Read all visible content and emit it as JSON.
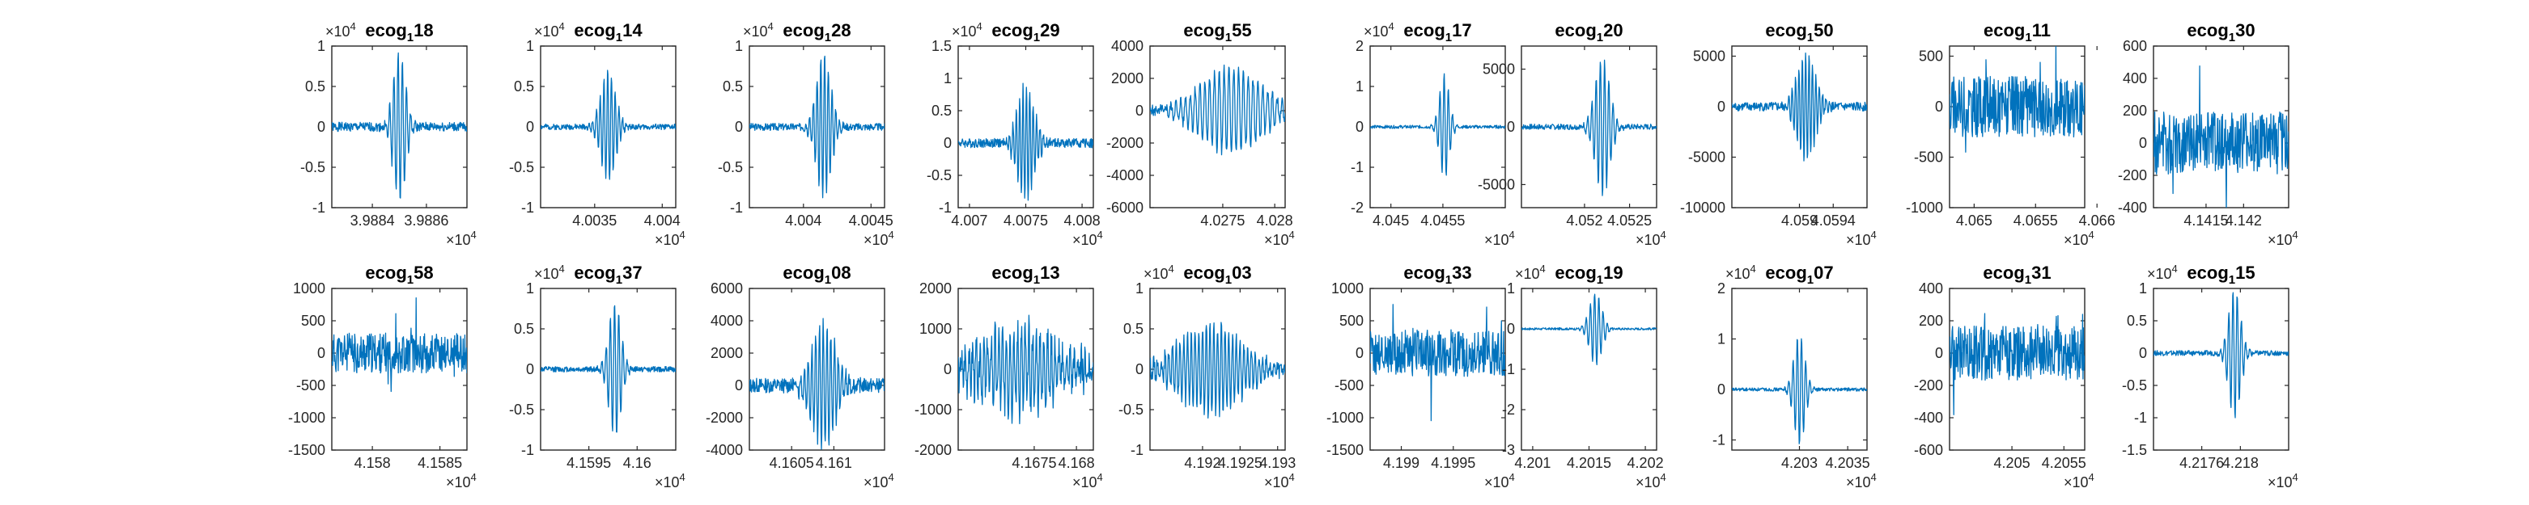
{
  "chart_data": [
    {
      "type": "line",
      "title": {
        "base": "ecog",
        "sub": "1",
        "rest": "18"
      },
      "x_ticks": [
        "3.9884",
        "3.9886"
      ],
      "x_multiplier": {
        "base": "×10",
        "exp": "4"
      },
      "y_ticks": [
        "-1",
        "-0.5",
        "0",
        "0.5",
        "1"
      ],
      "y_multiplier": {
        "base": "×10",
        "exp": "4"
      },
      "xlim": [
        39882.5,
        39887.5
      ],
      "ylim": [
        -10000,
        10000
      ],
      "signal": {
        "kind": "burst",
        "amp": 9500,
        "center": 0.5,
        "width": 0.1,
        "freq": 8,
        "noise": 0.06,
        "seed": 1
      }
    },
    {
      "type": "line",
      "title": {
        "base": "ecog",
        "sub": "1",
        "rest": "14"
      },
      "x_ticks": [
        "4.0035",
        "4.004"
      ],
      "x_multiplier": {
        "base": "×10",
        "exp": "4"
      },
      "y_ticks": [
        "-1",
        "-0.5",
        "0",
        "0.5",
        "1"
      ],
      "y_multiplier": {
        "base": "×10",
        "exp": "4"
      },
      "xlim": [
        40031,
        40041
      ],
      "ylim": [
        -10000,
        10000
      ],
      "signal": {
        "kind": "burst",
        "amp": 7000,
        "center": 0.5,
        "width": 0.12,
        "freq": 9,
        "noise": 0.05,
        "seed": 2
      }
    },
    {
      "type": "line",
      "title": {
        "base": "ecog",
        "sub": "1",
        "rest": "28"
      },
      "x_ticks": [
        "4.004",
        "4.0045"
      ],
      "x_multiplier": {
        "base": "×10",
        "exp": "4"
      },
      "y_ticks": [
        "-1",
        "-0.5",
        "0",
        "0.5",
        "1"
      ],
      "y_multiplier": {
        "base": "×10",
        "exp": "4"
      },
      "xlim": [
        40036,
        40046
      ],
      "ylim": [
        -10000,
        10000
      ],
      "signal": {
        "kind": "burst",
        "amp": 9000,
        "center": 0.55,
        "width": 0.12,
        "freq": 9,
        "noise": 0.05,
        "seed": 3
      }
    },
    {
      "type": "line",
      "title": {
        "base": "ecog",
        "sub": "1",
        "rest": "29"
      },
      "x_ticks": [
        "4.007",
        "4.0075",
        "4.008"
      ],
      "x_multiplier": {
        "base": "×10",
        "exp": "4"
      },
      "y_ticks": [
        "-1",
        "-0.5",
        "0",
        "0.5",
        "1",
        "1.5"
      ],
      "y_multiplier": {
        "base": "×10",
        "exp": "4"
      },
      "xlim": [
        40069,
        40081
      ],
      "ylim": [
        -10000,
        15000
      ],
      "signal": {
        "kind": "burst",
        "amp": 9000,
        "center": 0.5,
        "width": 0.14,
        "freq": 10,
        "noise": 0.08,
        "seed": 4
      }
    },
    {
      "type": "line",
      "title": {
        "base": "ecog",
        "sub": "1",
        "rest": "55"
      },
      "x_ticks": [
        "4.0275",
        "4.028"
      ],
      "x_multiplier": {
        "base": "×10",
        "exp": "4"
      },
      "y_ticks": [
        "-6000",
        "-4000",
        "-2000",
        "0",
        "2000",
        "4000"
      ],
      "y_multiplier": null,
      "xlim": [
        40268,
        40281
      ],
      "ylim": [
        -6000,
        4000
      ],
      "signal": {
        "kind": "wave",
        "amp": 2600,
        "center": 0.6,
        "width": 0.35,
        "freq": 7,
        "noise": 0.12,
        "seed": 5
      }
    },
    {
      "type": "line",
      "title": {
        "base": "ecog",
        "sub": "1",
        "rest": "17"
      },
      "x_ticks": [
        "4.045",
        "4.0455"
      ],
      "x_multiplier": {
        "base": "×10",
        "exp": "4"
      },
      "y_ticks": [
        "-2",
        "-1",
        "0",
        "1",
        "2"
      ],
      "y_multiplier": {
        "base": "×10",
        "exp": "4"
      },
      "xlim": [
        40448,
        40461
      ],
      "ylim": [
        -20000,
        20000
      ],
      "signal": {
        "kind": "burst",
        "amp": 13000,
        "center": 0.55,
        "width": 0.08,
        "freq": 8,
        "noise": 0.03,
        "seed": 6
      }
    },
    {
      "type": "line",
      "title": {
        "base": "ecog",
        "sub": "1",
        "rest": "20"
      },
      "x_ticks": [
        "4.052",
        "4.0525"
      ],
      "x_multiplier": {
        "base": "×10",
        "exp": "4"
      },
      "y_ticks": [
        "-5000",
        "0",
        "5000"
      ],
      "y_multiplier": null,
      "xlim": [
        40513,
        40528
      ],
      "ylim": [
        -7000,
        7000
      ],
      "signal": {
        "kind": "burst",
        "amp": 6000,
        "center": 0.6,
        "width": 0.12,
        "freq": 8,
        "noise": 0.04,
        "seed": 7
      }
    },
    {
      "type": "line",
      "title": {
        "base": "ecog",
        "sub": "1",
        "rest": "50"
      },
      "x_ticks": [
        "4.059",
        "4.0594"
      ],
      "x_multiplier": {
        "base": "×10",
        "exp": "4"
      },
      "y_ticks": [
        "-10000",
        "-5000",
        "0",
        "5000"
      ],
      "y_multiplier": null,
      "xlim": [
        40582,
        40598
      ],
      "ylim": [
        -10000,
        6000
      ],
      "signal": {
        "kind": "burst",
        "amp": 5500,
        "center": 0.55,
        "width": 0.15,
        "freq": 10,
        "noise": 0.08,
        "seed": 8
      }
    },
    {
      "type": "line",
      "title": {
        "base": "ecog",
        "sub": "1",
        "rest": "11"
      },
      "x_ticks": [
        "4.065",
        "4.0655",
        "4.066"
      ],
      "x_multiplier": {
        "base": "×10",
        "exp": "4"
      },
      "y_ticks": [
        "-1000",
        "-500",
        "0",
        "500"
      ],
      "y_multiplier": null,
      "xlim": [
        40648,
        40659
      ],
      "ylim": [
        -1000,
        600
      ],
      "signal": {
        "kind": "noise",
        "amp": 250,
        "center": 0.5,
        "width": 0.5,
        "freq": 40,
        "noise": 1,
        "seed": 9
      }
    },
    {
      "type": "line",
      "title": {
        "base": "ecog",
        "sub": "1",
        "rest": "30"
      },
      "x_ticks": [
        "4.1415",
        "4.142"
      ],
      "x_multiplier": {
        "base": "×10",
        "exp": "4"
      },
      "y_ticks": [
        "-400",
        "-200",
        "0",
        "200",
        "400",
        "600"
      ],
      "y_multiplier": null,
      "xlim": [
        41408,
        41426
      ],
      "ylim": [
        -400,
        600
      ],
      "signal": {
        "kind": "noise",
        "amp": 160,
        "center": 0.5,
        "width": 0.5,
        "freq": 40,
        "noise": 1,
        "seed": 10
      }
    },
    {
      "type": "line",
      "title": {
        "base": "ecog",
        "sub": "1",
        "rest": "58"
      },
      "x_ticks": [
        "4.158",
        "4.1585"
      ],
      "x_multiplier": {
        "base": "×10",
        "exp": "4"
      },
      "y_ticks": [
        "-1500",
        "-1000",
        "-500",
        "0",
        "500",
        "1000"
      ],
      "y_multiplier": null,
      "xlim": [
        41577,
        41587
      ],
      "ylim": [
        -1500,
        1000
      ],
      "signal": {
        "kind": "noise",
        "amp": 260,
        "center": 0.5,
        "width": 0.5,
        "freq": 40,
        "noise": 1,
        "seed": 11
      }
    },
    {
      "type": "line",
      "title": {
        "base": "ecog",
        "sub": "1",
        "rest": "37"
      },
      "x_ticks": [
        "4.1595",
        "4.16"
      ],
      "x_multiplier": {
        "base": "×10",
        "exp": "4"
      },
      "y_ticks": [
        "-1",
        "-0.5",
        "0",
        "0.5",
        "1"
      ],
      "y_multiplier": {
        "base": "×10",
        "exp": "4"
      },
      "xlim": [
        41590,
        41604
      ],
      "ylim": [
        -10000,
        10000
      ],
      "signal": {
        "kind": "burst",
        "amp": 8500,
        "center": 0.55,
        "width": 0.1,
        "freq": 8,
        "noise": 0.04,
        "seed": 12
      }
    },
    {
      "type": "line",
      "title": {
        "base": "ecog",
        "sub": "1",
        "rest": "08"
      },
      "x_ticks": [
        "4.1605",
        "4.161"
      ],
      "x_multiplier": {
        "base": "×10",
        "exp": "4"
      },
      "y_ticks": [
        "-4000",
        "-2000",
        "0",
        "2000",
        "4000",
        "6000"
      ],
      "y_multiplier": null,
      "xlim": [
        41600,
        41616
      ],
      "ylim": [
        -4000,
        6000
      ],
      "signal": {
        "kind": "burst",
        "amp": 3800,
        "center": 0.55,
        "width": 0.2,
        "freq": 9,
        "noise": 0.12,
        "seed": 13
      }
    },
    {
      "type": "line",
      "title": {
        "base": "ecog",
        "sub": "1",
        "rest": "13"
      },
      "x_ticks": [
        "4.1675",
        "4.168"
      ],
      "x_multiplier": {
        "base": "×10",
        "exp": "4"
      },
      "y_ticks": [
        "-2000",
        "-1000",
        "0",
        "1000",
        "2000"
      ],
      "y_multiplier": null,
      "xlim": [
        41666,
        41682
      ],
      "ylim": [
        -2000,
        2000
      ],
      "signal": {
        "kind": "wave",
        "amp": 1000,
        "center": 0.45,
        "width": 0.45,
        "freq": 9,
        "noise": 0.4,
        "seed": 14
      }
    },
    {
      "type": "line",
      "title": {
        "base": "ecog",
        "sub": "1",
        "rest": "03"
      },
      "x_ticks": [
        "4.192",
        "4.1925",
        "4.193"
      ],
      "x_multiplier": {
        "base": "×10",
        "exp": "4"
      },
      "y_ticks": [
        "-1",
        "-0.5",
        "0",
        "0.5",
        "1"
      ],
      "y_multiplier": {
        "base": "×10",
        "exp": "4"
      },
      "xlim": [
        41913,
        41931
      ],
      "ylim": [
        -10000,
        10000
      ],
      "signal": {
        "kind": "wave",
        "amp": 5500,
        "center": 0.45,
        "width": 0.35,
        "freq": 9,
        "noise": 0.15,
        "seed": 15
      }
    },
    {
      "type": "line",
      "title": {
        "base": "ecog",
        "sub": "1",
        "rest": "33"
      },
      "x_ticks": [
        "4.199",
        "4.1995"
      ],
      "x_multiplier": {
        "base": "×10",
        "exp": "4"
      },
      "y_ticks": [
        "-1500",
        "-1000",
        "-500",
        "0",
        "500",
        "1000"
      ],
      "y_multiplier": null,
      "xlim": [
        41987,
        42000
      ],
      "ylim": [
        -1500,
        1000
      ],
      "signal": {
        "kind": "noise",
        "amp": 300,
        "center": 0.5,
        "width": 0.5,
        "freq": 40,
        "noise": 1,
        "seed": 16
      }
    },
    {
      "type": "line",
      "title": {
        "base": "ecog",
        "sub": "1",
        "rest": "19"
      },
      "x_ticks": [
        "4.201",
        "4.2015",
        "4.202"
      ],
      "x_multiplier": {
        "base": "×10",
        "exp": "4"
      },
      "y_ticks": [
        "-3",
        "-2",
        "-1",
        "0",
        "1"
      ],
      "y_multiplier": {
        "base": "×10",
        "exp": "4"
      },
      "xlim": [
        42009,
        42021
      ],
      "ylim": [
        -30000,
        10000
      ],
      "signal": {
        "kind": "burst",
        "amp": 9000,
        "center": 0.55,
        "width": 0.1,
        "freq": 8,
        "noise": 0.03,
        "seed": 17
      }
    },
    {
      "type": "line",
      "title": {
        "base": "ecog",
        "sub": "1",
        "rest": "07"
      },
      "x_ticks": [
        "4.203",
        "4.2035"
      ],
      "x_multiplier": {
        "base": "×10",
        "exp": "4"
      },
      "y_ticks": [
        "-1",
        "0",
        "1",
        "2"
      ],
      "y_multiplier": {
        "base": "×10",
        "exp": "4"
      },
      "xlim": [
        42023,
        42037
      ],
      "ylim": [
        -12000,
        20000
      ],
      "signal": {
        "kind": "burst",
        "amp": 11000,
        "center": 0.5,
        "width": 0.09,
        "freq": 8,
        "noise": 0.03,
        "seed": 18
      }
    },
    {
      "type": "line",
      "title": {
        "base": "ecog",
        "sub": "1",
        "rest": "31"
      },
      "x_ticks": [
        "4.205",
        "4.2055"
      ],
      "x_multiplier": {
        "base": "×10",
        "exp": "4"
      },
      "y_ticks": [
        "-600",
        "-400",
        "-200",
        "0",
        "200",
        "400"
      ],
      "y_multiplier": null,
      "xlim": [
        42044,
        42057
      ],
      "ylim": [
        -600,
        400
      ],
      "signal": {
        "kind": "noise",
        "amp": 140,
        "center": 0.5,
        "width": 0.5,
        "freq": 40,
        "noise": 1,
        "seed": 19
      }
    },
    {
      "type": "line",
      "title": {
        "base": "ecog",
        "sub": "1",
        "rest": "15"
      },
      "x_ticks": [
        "4.2176",
        "4.218"
      ],
      "x_multiplier": {
        "base": "×10",
        "exp": "4"
      },
      "y_ticks": [
        "-1.5",
        "-1",
        "-0.5",
        "0",
        "0.5",
        "1"
      ],
      "y_multiplier": {
        "base": "×10",
        "exp": "4"
      },
      "xlim": [
        42171,
        42185
      ],
      "ylim": [
        -15000,
        10000
      ],
      "signal": {
        "kind": "burst",
        "amp": 10000,
        "center": 0.6,
        "width": 0.1,
        "freq": 8,
        "noise": 0.04,
        "seed": 20
      }
    }
  ]
}
